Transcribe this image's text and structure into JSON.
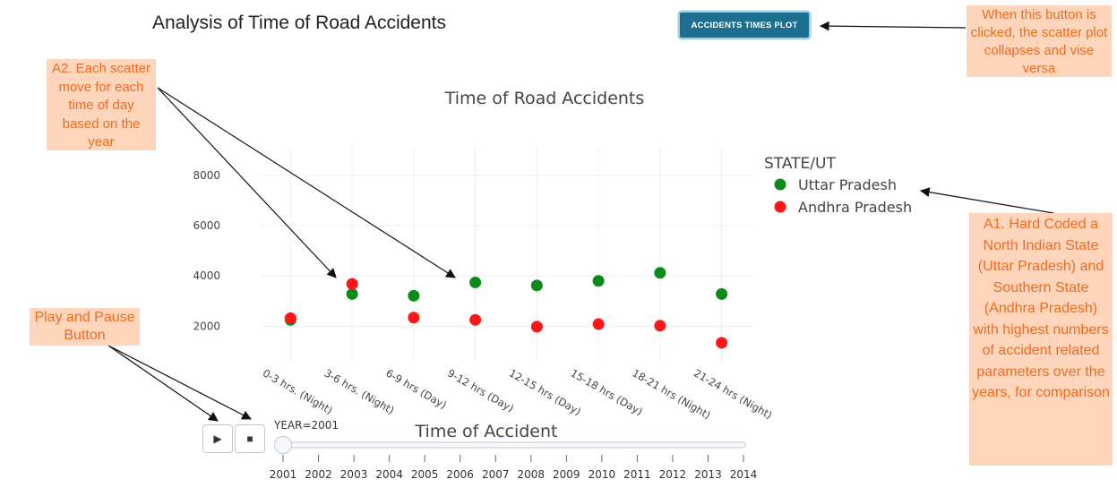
{
  "page_title": "Analysis of Time of Road Accidents",
  "toggle_button_label": "ACCIDENTS TIMES PLOT",
  "annotations": {
    "toggle_note": "When this button is clicked, the scatter plot collapses and vise versa",
    "scatter_note": "A2. Each scatter move for each time of day based on the year",
    "legend_note": "A1. Hard Coded a North Indian State (Uttar Pradesh) and  Southern State (Andhra Pradesh) with highest numbers of accident related parameters over the years, for comparison",
    "play_note": "Play and Pause Button"
  },
  "controls": {
    "play_icon": "▶",
    "stop_icon": "■"
  },
  "slider": {
    "current_label": "YEAR=2001",
    "value": 2001,
    "ticks": [
      "2001",
      "2002",
      "2003",
      "2004",
      "2005",
      "2006",
      "2007",
      "2008",
      "2009",
      "2010",
      "2011",
      "2012",
      "2013",
      "2014"
    ]
  },
  "colors": {
    "uttar": "#0a8a18",
    "andhra": "#ff1616",
    "note_bg": "#ffd5bc",
    "note_text": "#ef6b1e",
    "button": "#1d6f8f"
  },
  "chart_data": {
    "type": "scatter",
    "title": "Time of Road Accidents",
    "xlabel": "Time of Accident",
    "ylabel": "",
    "legend_title": "STATE/UT",
    "legend_position": "right",
    "grid": true,
    "categories": [
      "0-3 hrs. (Night)",
      "3-6 hrs. (Night)",
      "6-9 hrs (Day)",
      "9-12 hrs (Day)",
      "12-15 hrs (Day)",
      "15-18 hrs (Day)",
      "18-21 hrs (Night)",
      "21-24 hrs (Night)"
    ],
    "yticks": [
      2000,
      4000,
      6000,
      8000
    ],
    "ylim": [
      550,
      9100
    ],
    "series": [
      {
        "name": "Uttar Pradesh",
        "color": "#0a8a18",
        "values": [
          2250,
          3280,
          3210,
          3740,
          3620,
          3800,
          4120,
          3280
        ]
      },
      {
        "name": "Andhra Pradesh",
        "color": "#ff1616",
        "values": [
          2320,
          3680,
          2340,
          2250,
          1980,
          2080,
          2020,
          1340
        ]
      }
    ]
  }
}
